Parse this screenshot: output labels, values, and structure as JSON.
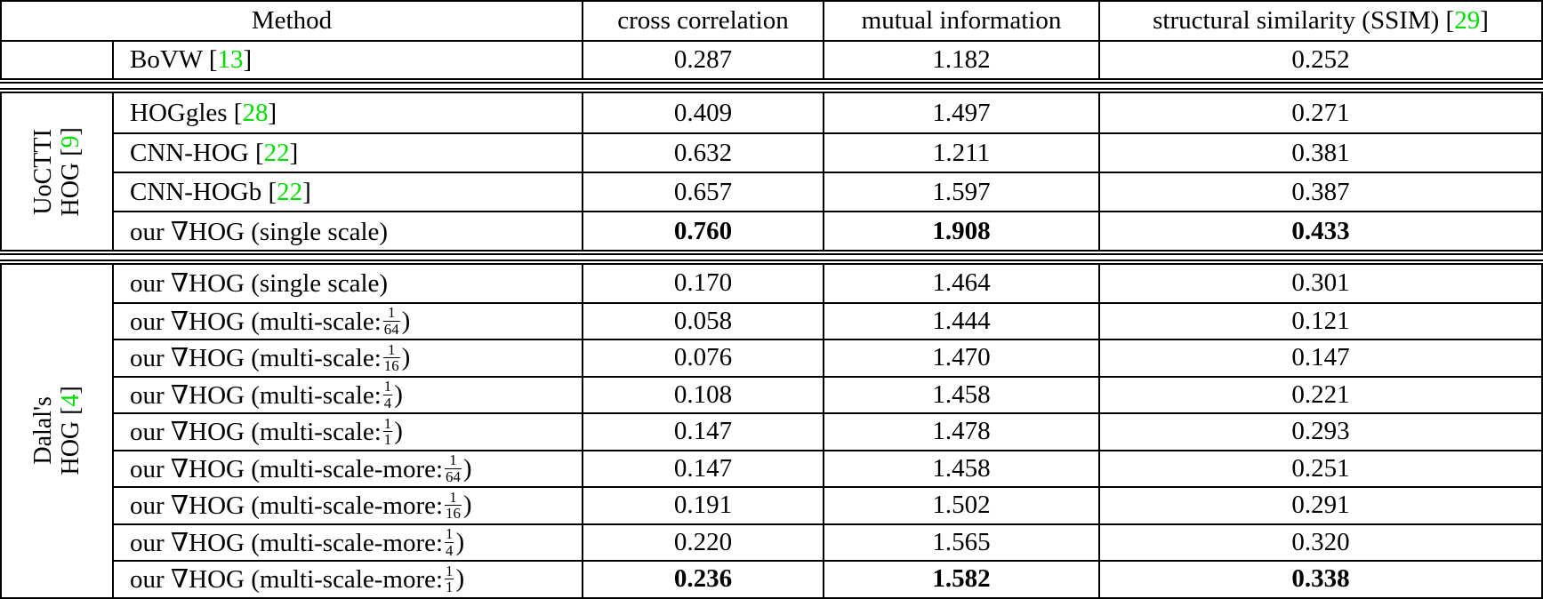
{
  "colors": {
    "citation_green": "#00dd00",
    "rule_black": "#000000",
    "background": "#ffffff"
  },
  "header": {
    "method": "Method",
    "cols": [
      [
        {
          "text": "cross correlation"
        }
      ],
      [
        {
          "text": "mutual information"
        }
      ],
      [
        {
          "text": "structural similarity (SSIM) ["
        },
        {
          "cite": "29"
        },
        {
          "text": "]"
        }
      ]
    ]
  },
  "sections": [
    {
      "id": "baseline",
      "label": null,
      "rows": [
        {
          "method": [
            {
              "text": "BoVW ["
            },
            {
              "cite": "13"
            },
            {
              "text": "]"
            }
          ],
          "values": [
            "0.287",
            "1.182",
            "0.252"
          ],
          "bold": false
        }
      ]
    },
    {
      "id": "uoctti-hog",
      "label": {
        "line1": [
          {
            "text": "UoCTTI"
          }
        ],
        "line2": [
          {
            "text": "HOG ["
          },
          {
            "cite": "9"
          },
          {
            "text": "]"
          }
        ]
      },
      "rows": [
        {
          "method": [
            {
              "text": "HOGgles ["
            },
            {
              "cite": "28"
            },
            {
              "text": "]"
            }
          ],
          "values": [
            "0.409",
            "1.497",
            "0.271"
          ],
          "bold": false
        },
        {
          "method": [
            {
              "text": "CNN-HOG ["
            },
            {
              "cite": "22"
            },
            {
              "text": "]"
            }
          ],
          "values": [
            "0.632",
            "1.211",
            "0.381"
          ],
          "bold": false
        },
        {
          "method": [
            {
              "text": "CNN-HOGb ["
            },
            {
              "cite": "22"
            },
            {
              "text": "]"
            }
          ],
          "values": [
            "0.657",
            "1.597",
            "0.387"
          ],
          "bold": false
        },
        {
          "method": [
            {
              "text": "our ∇HOG (single scale)"
            }
          ],
          "values": [
            "0.760",
            "1.908",
            "0.433"
          ],
          "bold": true
        }
      ]
    },
    {
      "id": "dalal-hog",
      "label": {
        "line1": [
          {
            "text": "Dalal's"
          }
        ],
        "line2": [
          {
            "text": "HOG ["
          },
          {
            "cite": "4"
          },
          {
            "text": "]"
          }
        ]
      },
      "rows": [
        {
          "method": [
            {
              "text": "our ∇HOG (single scale)"
            }
          ],
          "values": [
            "0.170",
            "1.464",
            "0.301"
          ],
          "bold": false
        },
        {
          "method": [
            {
              "text": "our ∇HOG (multi-scale: "
            },
            {
              "frac": [
                "1",
                "64"
              ]
            },
            {
              "text": ")"
            }
          ],
          "values": [
            "0.058",
            "1.444",
            "0.121"
          ],
          "bold": false
        },
        {
          "method": [
            {
              "text": "our ∇HOG (multi-scale: "
            },
            {
              "frac": [
                "1",
                "16"
              ]
            },
            {
              "text": ")"
            }
          ],
          "values": [
            "0.076",
            "1.470",
            "0.147"
          ],
          "bold": false
        },
        {
          "method": [
            {
              "text": "our ∇HOG (multi-scale: "
            },
            {
              "frac": [
                "1",
                "4"
              ]
            },
            {
              "text": ")"
            }
          ],
          "values": [
            "0.108",
            "1.458",
            "0.221"
          ],
          "bold": false
        },
        {
          "method": [
            {
              "text": "our ∇HOG (multi-scale: "
            },
            {
              "frac": [
                "1",
                "1"
              ]
            },
            {
              "text": ")"
            }
          ],
          "values": [
            "0.147",
            "1.478",
            "0.293"
          ],
          "bold": false
        },
        {
          "method": [
            {
              "text": "our ∇HOG (multi-scale-more: "
            },
            {
              "frac": [
                "1",
                "64"
              ]
            },
            {
              "text": ")"
            }
          ],
          "values": [
            "0.147",
            "1.458",
            "0.251"
          ],
          "bold": false
        },
        {
          "method": [
            {
              "text": "our ∇HOG (multi-scale-more: "
            },
            {
              "frac": [
                "1",
                "16"
              ]
            },
            {
              "text": ")"
            }
          ],
          "values": [
            "0.191",
            "1.502",
            "0.291"
          ],
          "bold": false
        },
        {
          "method": [
            {
              "text": "our ∇HOG (multi-scale-more: "
            },
            {
              "frac": [
                "1",
                "4"
              ]
            },
            {
              "text": ")"
            }
          ],
          "values": [
            "0.220",
            "1.565",
            "0.320"
          ],
          "bold": false
        },
        {
          "method": [
            {
              "text": "our ∇HOG (multi-scale-more: "
            },
            {
              "frac": [
                "1",
                "1"
              ]
            },
            {
              "text": ")"
            }
          ],
          "values": [
            "0.236",
            "1.582",
            "0.338"
          ],
          "bold": true
        }
      ]
    }
  ]
}
